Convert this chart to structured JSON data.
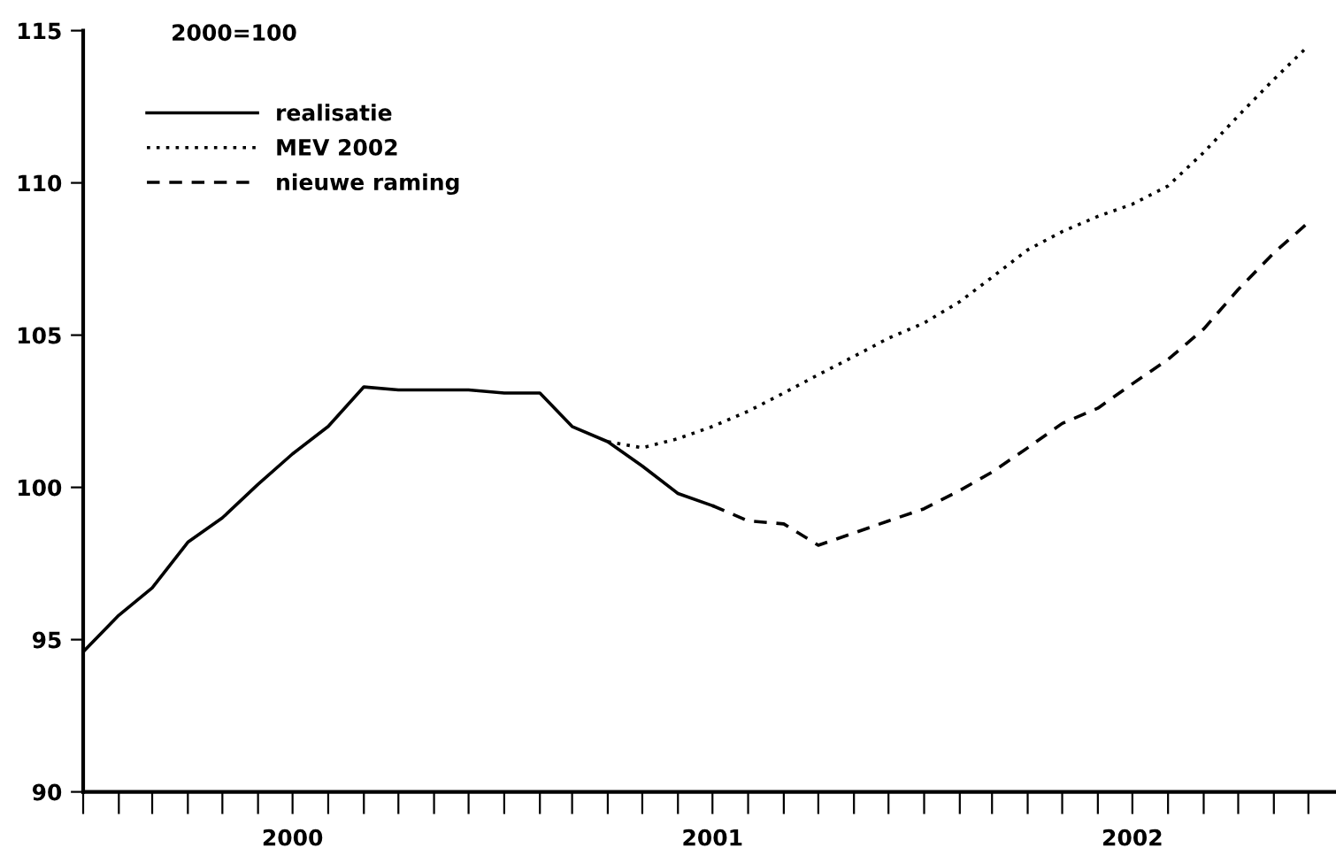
{
  "chart_data": {
    "type": "line",
    "title": "2000=100",
    "xlim": [
      "2000-01-01",
      "2002-12-25"
    ],
    "ylim": [
      90,
      115
    ],
    "yticks": [
      90,
      95,
      100,
      105,
      110,
      115
    ],
    "xticks": [
      {
        "value": "2000-01",
        "label": null
      },
      {
        "value": "2000-02",
        "label": null
      },
      {
        "value": "2000-03",
        "label": null
      },
      {
        "value": "2000-04",
        "label": null
      },
      {
        "value": "2000-05",
        "label": null
      },
      {
        "value": "2000-06",
        "label": null
      },
      {
        "value": "2000-07",
        "label": "2000"
      },
      {
        "value": "2000-08",
        "label": null
      },
      {
        "value": "2000-09",
        "label": null
      },
      {
        "value": "2000-10",
        "label": null
      },
      {
        "value": "2000-11",
        "label": null
      },
      {
        "value": "2000-12",
        "label": null
      },
      {
        "value": "2001-01",
        "label": null
      },
      {
        "value": "2001-02",
        "label": null
      },
      {
        "value": "2001-03",
        "label": null
      },
      {
        "value": "2001-04",
        "label": null
      },
      {
        "value": "2001-05",
        "label": null
      },
      {
        "value": "2001-06",
        "label": null
      },
      {
        "value": "2001-07",
        "label": "2001"
      },
      {
        "value": "2001-08",
        "label": null
      },
      {
        "value": "2001-09",
        "label": null
      },
      {
        "value": "2001-10",
        "label": null
      },
      {
        "value": "2001-11",
        "label": null
      },
      {
        "value": "2001-12",
        "label": null
      },
      {
        "value": "2002-01",
        "label": null
      },
      {
        "value": "2002-02",
        "label": null
      },
      {
        "value": "2002-03",
        "label": null
      },
      {
        "value": "2002-04",
        "label": null
      },
      {
        "value": "2002-05",
        "label": null
      },
      {
        "value": "2002-06",
        "label": null
      },
      {
        "value": "2002-07",
        "label": "2002"
      },
      {
        "value": "2002-08",
        "label": null
      },
      {
        "value": "2002-09",
        "label": null
      },
      {
        "value": "2002-10",
        "label": null
      },
      {
        "value": "2002-11",
        "label": null
      },
      {
        "value": "2002-12",
        "label": null
      }
    ],
    "grid": false,
    "legend": "top left",
    "series": [
      {
        "name": "realisatie",
        "color": "#000000",
        "line_style": "solid",
        "x": [
          "2000-01",
          "2000-02",
          "2000-03",
          "2000-04",
          "2000-05",
          "2000-06",
          "2000-07",
          "2000-08",
          "2000-09",
          "2000-10",
          "2000-11",
          "2000-12",
          "2001-01",
          "2001-02",
          "2001-03",
          "2001-04",
          "2001-05",
          "2001-06",
          "2001-07"
        ],
        "values": [
          94.6,
          95.8,
          96.7,
          98.2,
          99.0,
          100.1,
          101.1,
          102.0,
          103.3,
          103.2,
          103.2,
          103.2,
          103.1,
          103.1,
          102.0,
          101.5,
          100.7,
          99.8,
          99.4
        ]
      },
      {
        "name": "MEV 2002",
        "color": "#000000",
        "line_style": "dotted",
        "x": [
          "2001-04",
          "2001-05",
          "2001-06",
          "2001-07",
          "2001-08",
          "2001-09",
          "2001-10",
          "2001-11",
          "2001-12",
          "2002-01",
          "2002-02",
          "2002-03",
          "2002-04",
          "2002-05",
          "2002-06",
          "2002-07",
          "2002-08",
          "2002-09",
          "2002-10",
          "2002-11",
          "2002-12"
        ],
        "values": [
          101.5,
          101.3,
          101.6,
          102.0,
          102.5,
          103.1,
          103.7,
          104.3,
          104.9,
          105.4,
          106.1,
          106.9,
          107.8,
          108.4,
          108.9,
          109.3,
          109.9,
          111.0,
          112.2,
          113.4,
          114.5
        ]
      },
      {
        "name": "nieuwe raming",
        "color": "#000000",
        "line_style": "dashed",
        "x": [
          "2001-07",
          "2001-08",
          "2001-09",
          "2001-10",
          "2001-11",
          "2001-12",
          "2002-01",
          "2002-02",
          "2002-03",
          "2002-04",
          "2002-05",
          "2002-06",
          "2002-07",
          "2002-08",
          "2002-09",
          "2002-10",
          "2002-11",
          "2002-12"
        ],
        "values": [
          99.4,
          98.9,
          98.8,
          98.1,
          98.5,
          98.9,
          99.3,
          99.9,
          100.5,
          101.3,
          102.1,
          102.6,
          103.4,
          104.2,
          105.2,
          106.5,
          107.7,
          108.7
        ]
      }
    ]
  }
}
